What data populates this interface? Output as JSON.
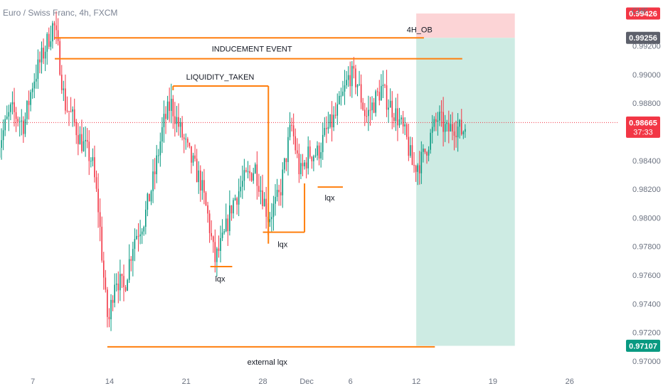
{
  "title": "Euro / Swiss Franc, 4h, FXCM",
  "currency": "CHF",
  "colors": {
    "up": "#089981",
    "down": "#f23645",
    "annotation": "#ff7f0e",
    "ob_zone": "#fcd4d6",
    "target_zone": "#cdebe3",
    "current_line": "#f23645"
  },
  "chart_data": {
    "type": "candlestick",
    "ylim": [
      0.97,
      0.9952
    ],
    "y_ticks": [
      {
        "value": 0.992,
        "label": "0.99200"
      },
      {
        "value": 0.99,
        "label": "0.99000"
      },
      {
        "value": 0.988,
        "label": "0.98800"
      },
      {
        "value": 0.984,
        "label": "0.98400"
      },
      {
        "value": 0.982,
        "label": "0.98200"
      },
      {
        "value": 0.98,
        "label": "0.98000"
      },
      {
        "value": 0.978,
        "label": "0.97800"
      },
      {
        "value": 0.976,
        "label": "0.97600"
      },
      {
        "value": 0.974,
        "label": "0.97400"
      },
      {
        "value": 0.972,
        "label": "0.97200"
      },
      {
        "value": 0.97,
        "label": "0.97000"
      }
    ],
    "x_ticks": [
      {
        "day": 7,
        "label": "7"
      },
      {
        "day": 14,
        "label": "14"
      },
      {
        "day": 21,
        "label": "21"
      },
      {
        "day": 28,
        "label": "28"
      },
      {
        "day": 32,
        "label": "Dec"
      },
      {
        "day": 36,
        "label": "6"
      },
      {
        "day": 42,
        "label": "12"
      },
      {
        "day": 49,
        "label": "19"
      },
      {
        "day": 56,
        "label": "26"
      }
    ],
    "x_range": [
      4.0,
      60.5
    ],
    "price_badges": [
      {
        "value": 0.99426,
        "label": "0.99426",
        "bg": "#f23645",
        "fg": "#ffffff"
      },
      {
        "value": 0.99256,
        "label": "0.99256",
        "bg": "#5d606b",
        "fg": "#ffffff"
      },
      {
        "value": 0.98665,
        "label": "0.98665",
        "bg": "#f23645",
        "fg": "#ffffff"
      },
      {
        "value": 0.97107,
        "label": "0.97107",
        "bg": "#089981",
        "fg": "#ffffff"
      }
    ],
    "countdown": "37:33",
    "current_price": 0.98665,
    "zones": [
      {
        "name": "order-block-zone",
        "x1": 42,
        "x2": 51,
        "y1": 0.99256,
        "y2": 0.99426,
        "color": "#fcd4d6"
      },
      {
        "name": "target-zone",
        "x1": 42,
        "x2": 51,
        "y1": 0.97107,
        "y2": 0.99256,
        "color": "#cdebe3"
      }
    ],
    "lines": [
      {
        "name": "4h-ob-line",
        "x1": 9.0,
        "x2": 42.7,
        "y": 0.99256
      },
      {
        "name": "inducement-line",
        "x1": 9.0,
        "x2": 46.2,
        "y": 0.9911
      },
      {
        "name": "liquidity-taken-line",
        "x1": 19.8,
        "x2": 28.5,
        "y": 0.9892,
        "drop_end": 0.9782
      },
      {
        "name": "lqx-line-1",
        "x1": 23.2,
        "x2": 25.2,
        "y": 0.9766
      },
      {
        "name": "lqx-line-2",
        "x1": 28.0,
        "x2": 31.8,
        "y": 0.979,
        "rise_end": 0.9824
      },
      {
        "name": "lqx-line-3",
        "x1": 33.0,
        "x2": 35.3,
        "y": 0.98215
      },
      {
        "name": "external-lqx-line",
        "x1": 13.8,
        "x2": 43.7,
        "y": 0.971
      }
    ],
    "annotations": [
      {
        "name": "label-4h-ob",
        "text": "4H_OB",
        "x": 42.3,
        "y": 0.99295
      },
      {
        "name": "label-inducement-event",
        "text": "INDUCEMENT EVENT",
        "x": 27.0,
        "y": 0.9916
      },
      {
        "name": "label-liquidity-taken",
        "text": "LIQUIDITY_TAKEN",
        "x": 24.1,
        "y": 0.98965
      },
      {
        "name": "label-lqx-1",
        "text": "lqx",
        "x": 24.1,
        "y": 0.97555
      },
      {
        "name": "label-lqx-2",
        "text": "lqx",
        "x": 29.8,
        "y": 0.97795
      },
      {
        "name": "label-lqx-3",
        "text": "lqx",
        "x": 34.1,
        "y": 0.9812
      },
      {
        "name": "label-external-lqx",
        "text": "external lqx",
        "x": 28.4,
        "y": 0.96975
      }
    ],
    "anchors": [
      [
        3.8,
        0.985
      ],
      [
        5.0,
        0.9875
      ],
      [
        6.2,
        0.9865
      ],
      [
        7.0,
        0.9895
      ],
      [
        8.2,
        0.992
      ],
      [
        8.9,
        0.9936
      ],
      [
        9.4,
        0.9912
      ],
      [
        9.9,
        0.988
      ],
      [
        10.6,
        0.987
      ],
      [
        11.3,
        0.9855
      ],
      [
        12.4,
        0.984
      ],
      [
        13.0,
        0.9805
      ],
      [
        13.6,
        0.9745
      ],
      [
        13.9,
        0.9725
      ],
      [
        14.5,
        0.976
      ],
      [
        15.3,
        0.975
      ],
      [
        16.2,
        0.9785
      ],
      [
        17.2,
        0.98
      ],
      [
        18.1,
        0.983
      ],
      [
        18.9,
        0.9865
      ],
      [
        19.6,
        0.988
      ],
      [
        20.5,
        0.986
      ],
      [
        21.2,
        0.9845
      ],
      [
        22.3,
        0.9825
      ],
      [
        23.0,
        0.98
      ],
      [
        23.6,
        0.977
      ],
      [
        24.4,
        0.9785
      ],
      [
        25.2,
        0.981
      ],
      [
        26.2,
        0.9825
      ],
      [
        27.3,
        0.9835
      ],
      [
        28.0,
        0.9815
      ],
      [
        28.5,
        0.98
      ],
      [
        29.5,
        0.9815
      ],
      [
        30.6,
        0.9865
      ],
      [
        31.4,
        0.983
      ],
      [
        32.2,
        0.9845
      ],
      [
        33.0,
        0.9845
      ],
      [
        33.8,
        0.986
      ],
      [
        34.6,
        0.987
      ],
      [
        35.3,
        0.9885
      ],
      [
        35.9,
        0.99
      ],
      [
        36.6,
        0.9895
      ],
      [
        37.4,
        0.987
      ],
      [
        38.1,
        0.988
      ],
      [
        38.8,
        0.989
      ],
      [
        39.5,
        0.988
      ],
      [
        40.3,
        0.987
      ],
      [
        41.1,
        0.9855
      ],
      [
        41.7,
        0.9835
      ],
      [
        42.5,
        0.984
      ],
      [
        43.2,
        0.9855
      ],
      [
        44.0,
        0.987
      ],
      [
        44.8,
        0.986
      ],
      [
        45.5,
        0.9865
      ],
      [
        46.2,
        0.986
      ],
      [
        46.6,
        0.9866
      ]
    ]
  }
}
